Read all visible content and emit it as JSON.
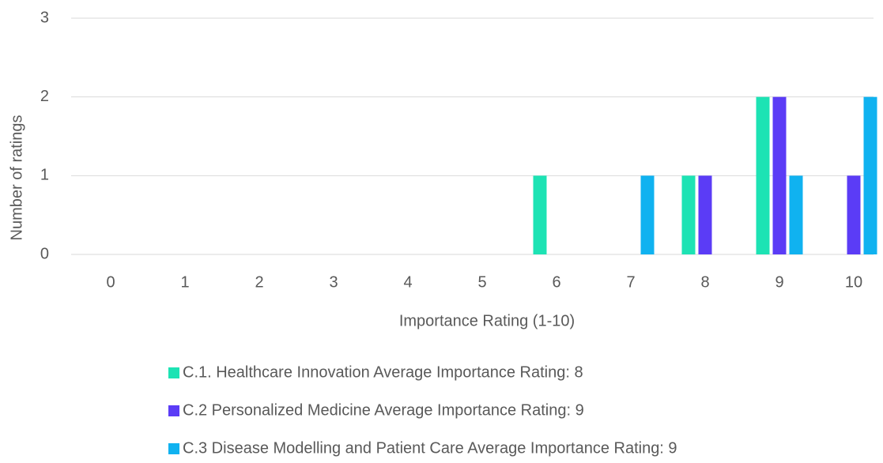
{
  "chart_data": {
    "type": "bar",
    "x_label": "Importance Rating (1-10)",
    "y_label": "Number of ratings",
    "categories": [
      "0",
      "1",
      "2",
      "3",
      "4",
      "5",
      "6",
      "7",
      "8",
      "9",
      "10"
    ],
    "series": [
      {
        "name": "C.1. Healthcare Innovation Average Importance Rating: 8",
        "color": "#1de3b4",
        "values": [
          0,
          0,
          0,
          0,
          0,
          0,
          1,
          0,
          1,
          2,
          0
        ]
      },
      {
        "name": "C.2 Personalized Medicine Average Importance Rating: 9",
        "color": "#5b3cf6",
        "values": [
          0,
          0,
          0,
          0,
          0,
          0,
          0,
          0,
          1,
          2,
          1
        ]
      },
      {
        "name": "C.3 Disease Modelling and Patient Care Average Importance Rating: 9",
        "color": "#10b2f0",
        "values": [
          0,
          0,
          0,
          0,
          0,
          0,
          0,
          1,
          0,
          1,
          2
        ]
      }
    ],
    "ylim": [
      0,
      3
    ],
    "yticks": [
      0,
      1,
      2,
      3
    ],
    "grid": true,
    "legend": "bottom"
  }
}
